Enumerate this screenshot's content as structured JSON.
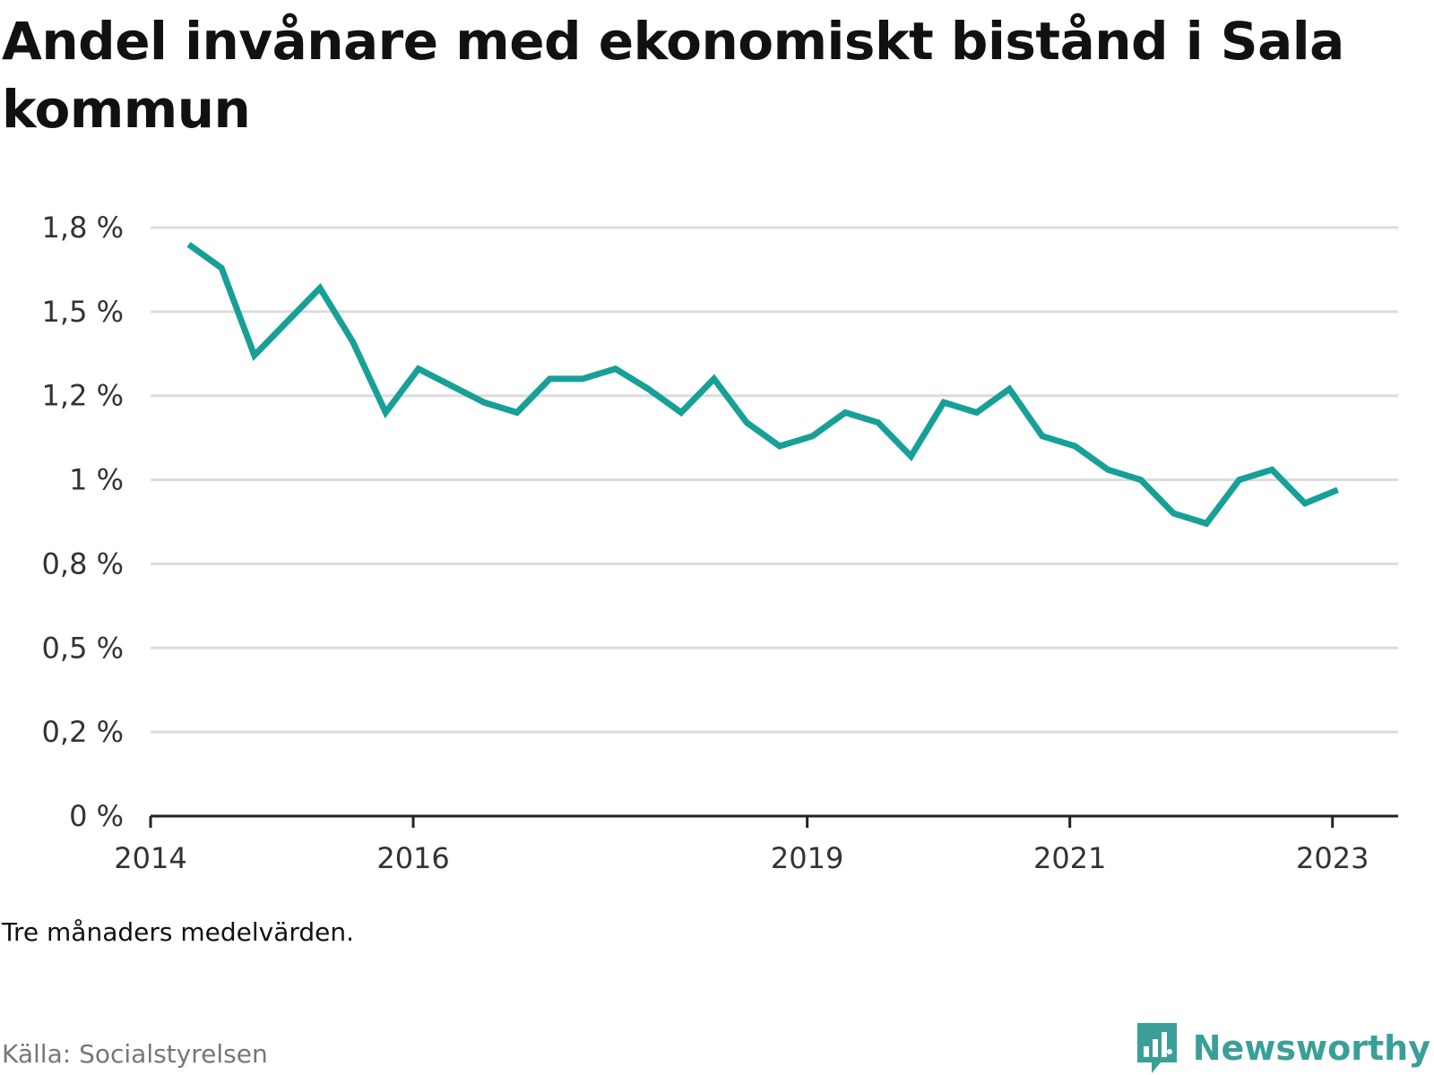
{
  "chart_data": {
    "type": "line",
    "title": "Andel invånare med ekonomiskt bistånd i Sala kommun",
    "note": "Tre månaders medelvärden.",
    "source": "Källa: Socialstyrelsen",
    "ylim": [
      0,
      1.75
    ],
    "yticks": [
      {
        "value": 0,
        "label": "0 %"
      },
      {
        "value": 0.25,
        "label": "0,2 %"
      },
      {
        "value": 0.5,
        "label": "0,5 %"
      },
      {
        "value": 0.75,
        "label": "0,8 %"
      },
      {
        "value": 1.0,
        "label": "1 %"
      },
      {
        "value": 1.25,
        "label": "1,2 %"
      },
      {
        "value": 1.5,
        "label": "1,5 %"
      },
      {
        "value": 1.75,
        "label": "1,8 %"
      }
    ],
    "xlim": [
      2014,
      2023.5
    ],
    "xticks": [
      {
        "value": 2014,
        "label": "2014"
      },
      {
        "value": 2016,
        "label": "2016"
      },
      {
        "value": 2019,
        "label": "2019"
      },
      {
        "value": 2021,
        "label": "2021"
      },
      {
        "value": 2023,
        "label": "2023"
      }
    ],
    "grid": true,
    "line_color": "#17a097",
    "series": [
      {
        "x": [
          2014.29,
          2014.54,
          2014.79,
          2015.04,
          2015.29,
          2015.54,
          2015.79,
          2016.04,
          2016.29,
          2016.54,
          2016.79,
          2017.04,
          2017.29,
          2017.54,
          2017.79,
          2018.04,
          2018.29,
          2018.54,
          2018.79,
          2019.04,
          2019.29,
          2019.54,
          2019.79,
          2020.04,
          2020.29,
          2020.54,
          2020.79,
          2021.04,
          2021.29,
          2021.54,
          2021.79,
          2022.04,
          2022.29,
          2022.54,
          2022.79,
          2023.04
        ],
        "y": [
          1.7,
          1.63,
          1.37,
          1.47,
          1.57,
          1.41,
          1.2,
          1.33,
          1.28,
          1.23,
          1.2,
          1.3,
          1.3,
          1.33,
          1.27,
          1.2,
          1.3,
          1.17,
          1.1,
          1.13,
          1.2,
          1.17,
          1.07,
          1.23,
          1.2,
          1.27,
          1.13,
          1.1,
          1.03,
          1.0,
          0.9,
          0.87,
          1.0,
          1.03,
          0.93,
          0.97
        ]
      }
    ]
  },
  "brand": {
    "name": "Newsworthy",
    "color": "#3a9f99"
  }
}
